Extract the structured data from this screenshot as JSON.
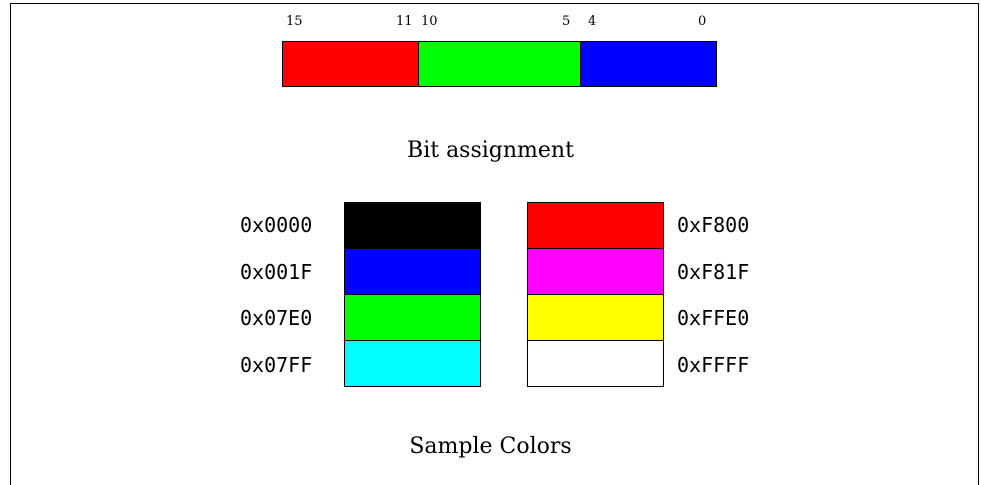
{
  "bit_assignment": {
    "caption": "Bit assignment",
    "tick_labels": [
      "15",
      "11",
      "10",
      "5",
      "4",
      "0"
    ],
    "fields": [
      {
        "name": "red",
        "high_bit": 15,
        "low_bit": 11,
        "color": "#FF0000"
      },
      {
        "name": "green",
        "high_bit": 10,
        "low_bit": 5,
        "color": "#00FF00"
      },
      {
        "name": "blue",
        "high_bit": 4,
        "low_bit": 0,
        "color": "#0000FF"
      }
    ]
  },
  "sample_colors": {
    "caption": "Sample Colors",
    "left_column": [
      {
        "code": "0x0000",
        "color": "#000000"
      },
      {
        "code": "0x001F",
        "color": "#0000FF"
      },
      {
        "code": "0x07E0",
        "color": "#00FF00"
      },
      {
        "code": "0x07FF",
        "color": "#00FFFF"
      }
    ],
    "right_column": [
      {
        "code": "0xF800",
        "color": "#FF0000"
      },
      {
        "code": "0xF81F",
        "color": "#FF00FF"
      },
      {
        "code": "0xFFE0",
        "color": "#FFFF00"
      },
      {
        "code": "0xFFFF",
        "color": "#FFFFFF"
      }
    ]
  }
}
